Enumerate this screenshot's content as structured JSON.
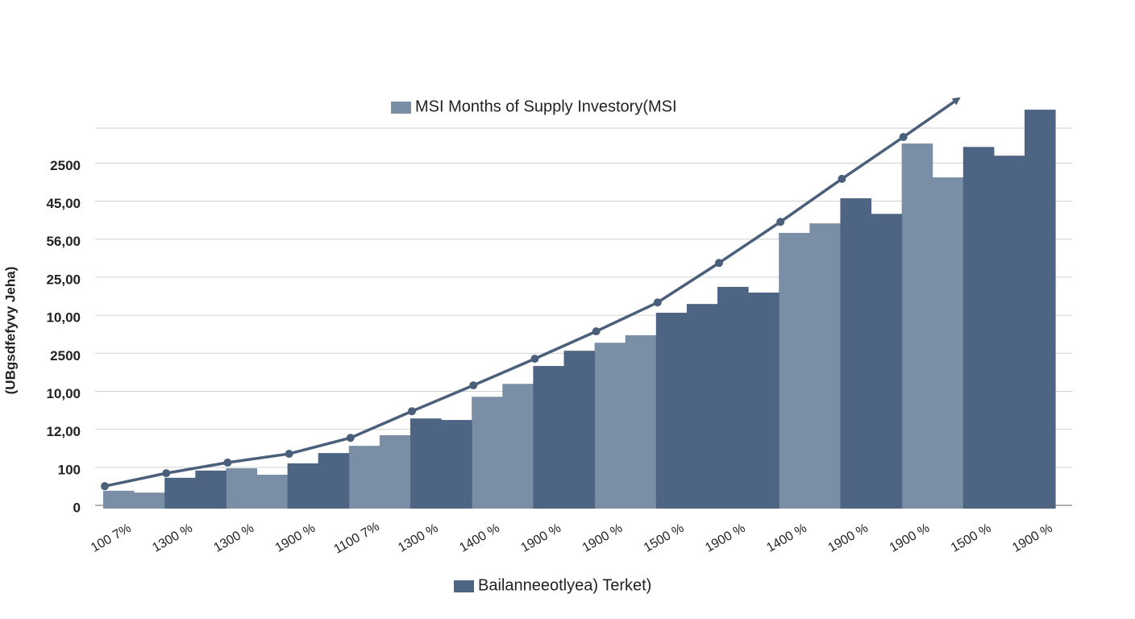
{
  "chart_data": {
    "type": "bar",
    "y_axis_label": "(UBgsdfefyvy Jeha)",
    "categories": [
      "100 7%",
      null,
      "1300 %",
      null,
      "1300 %",
      null,
      "1900 %",
      null,
      "1100 7%",
      null,
      "1300 %",
      null,
      "1400 %",
      null,
      "1900 %",
      null,
      "1900 %",
      null,
      "1500 %",
      null,
      "1900 %",
      null,
      "1400 %",
      null,
      "1900 %",
      null,
      "1900 %",
      null,
      "1500 %",
      null,
      "1900 %"
    ],
    "series": [
      {
        "name": "MSI Months of Supply Investory(MSI",
        "color": "#7a8fa6",
        "values": [
          0.47,
          0.42,
          null,
          null,
          1.06,
          0.89,
          null,
          null,
          1.65,
          1.93,
          null,
          null,
          2.94,
          3.28,
          null,
          null,
          4.36,
          4.56,
          null,
          null,
          null,
          null,
          7.25,
          7.5,
          null,
          null,
          9.6,
          8.71,
          null,
          null,
          null
        ]
      },
      {
        "name": "Bailanneeotlyea) Terket)",
        "color": "#4d6583",
        "values": [
          null,
          null,
          0.81,
          1.0,
          null,
          null,
          1.19,
          1.46,
          null,
          null,
          2.37,
          2.33,
          null,
          null,
          3.75,
          4.15,
          null,
          null,
          5.15,
          5.38,
          5.83,
          5.68,
          null,
          null,
          8.16,
          7.75,
          null,
          null,
          9.51,
          9.28,
          10.49
        ]
      }
    ],
    "line": {
      "color": "#4a5f7a",
      "x": [
        0,
        2,
        4,
        6,
        8,
        10,
        12,
        14,
        16,
        18,
        20,
        22,
        24,
        26,
        27.8
      ],
      "values": [
        0.59,
        0.93,
        1.21,
        1.44,
        1.86,
        2.56,
        3.24,
        3.94,
        4.66,
        5.42,
        6.46,
        7.54,
        8.67,
        9.77,
        10.78
      ]
    },
    "ylim": [
      0,
      11
    ],
    "yticks": [
      0,
      {
        "value": 1,
        "label": "100"
      },
      {
        "value": 2,
        "label": "12,00"
      },
      {
        "value": 3,
        "label": "10,00"
      },
      {
        "value": 4,
        "label": "2500"
      },
      {
        "value": 5,
        "label": "10,00"
      },
      {
        "value": 6,
        "label": "25,00"
      },
      {
        "value": 7,
        "label": "56,00"
      },
      {
        "value": 8,
        "label": "45,00"
      },
      {
        "value": 9,
        "label": "2500"
      }
    ],
    "grid": true
  }
}
